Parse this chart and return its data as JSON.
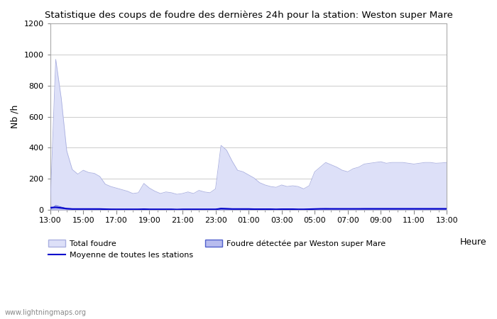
{
  "title": "Statistique des coups de foudre des dernières 24h pour la station: Weston super Mare",
  "ylabel": "Nb /h",
  "xlabel_right": "Heure",
  "watermark": "www.lightningmaps.org",
  "ylim": [
    0,
    1200
  ],
  "yticks": [
    0,
    200,
    400,
    600,
    800,
    1000,
    1200
  ],
  "xtick_labels": [
    "13:00",
    "15:00",
    "17:00",
    "19:00",
    "21:00",
    "23:00",
    "01:00",
    "03:00",
    "05:00",
    "07:00",
    "09:00",
    "11:00",
    "13:00"
  ],
  "bg_color": "#ffffff",
  "plot_bg_color": "#ffffff",
  "grid_color": "#cccccc",
  "total_foudre_fill": "#dde0f8",
  "total_foudre_line": "#aab0e0",
  "detected_fill": "#b8bcee",
  "detected_line": "#5060cc",
  "mean_color": "#0000cc",
  "legend_labels": [
    "Total foudre",
    "Moyenne de toutes les stations",
    "Foudre détectée par Weston super Mare"
  ],
  "total_foudre": [
    30,
    970,
    720,
    380,
    260,
    230,
    255,
    240,
    235,
    215,
    165,
    150,
    140,
    130,
    120,
    105,
    110,
    170,
    140,
    120,
    105,
    115,
    110,
    100,
    105,
    115,
    105,
    125,
    115,
    110,
    135,
    415,
    385,
    315,
    255,
    245,
    225,
    205,
    175,
    160,
    150,
    145,
    160,
    150,
    155,
    150,
    135,
    155,
    245,
    275,
    305,
    290,
    275,
    255,
    245,
    265,
    275,
    295,
    300,
    305,
    310,
    300,
    305,
    305,
    305,
    300,
    295,
    300,
    305,
    305,
    300,
    302,
    305
  ],
  "detected": [
    0,
    28,
    18,
    9,
    7,
    6,
    7,
    6,
    6,
    5,
    4,
    4,
    3,
    3,
    3,
    3,
    3,
    4,
    3,
    3,
    3,
    3,
    3,
    2,
    3,
    3,
    3,
    3,
    3,
    3,
    3,
    11,
    9,
    7,
    6,
    5,
    5,
    5,
    4,
    4,
    4,
    3,
    4,
    4,
    4,
    3,
    3,
    4,
    6,
    7,
    8,
    7,
    7,
    6,
    6,
    7,
    7,
    8,
    8,
    8,
    8,
    8,
    8,
    8,
    8,
    8,
    8,
    8,
    8,
    8,
    8,
    8,
    8
  ],
  "mean_line": [
    14,
    16,
    12,
    7,
    5,
    5,
    5,
    5,
    5,
    5,
    4,
    3,
    3,
    3,
    3,
    3,
    3,
    4,
    3,
    3,
    3,
    3,
    3,
    2,
    3,
    3,
    3,
    3,
    3,
    3,
    3,
    7,
    6,
    5,
    5,
    5,
    5,
    4,
    4,
    4,
    4,
    3,
    4,
    4,
    4,
    3,
    3,
    4,
    5,
    6,
    6,
    6,
    6,
    6,
    6,
    6,
    6,
    6,
    6,
    6,
    6,
    6,
    6,
    6,
    6,
    6,
    6,
    6,
    6,
    6,
    6,
    6,
    6
  ],
  "n_points": 73,
  "fig_width": 7.0,
  "fig_height": 4.5,
  "dpi": 100
}
